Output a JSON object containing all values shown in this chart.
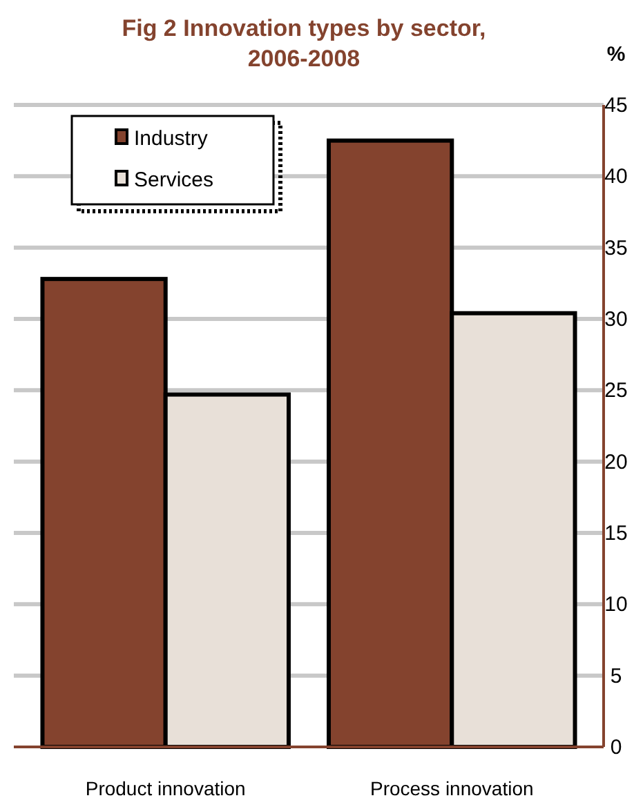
{
  "chart_data": {
    "type": "bar",
    "title": "Fig 2 Innovation types by sector, 2006-2008",
    "ylabel": "%",
    "categories": [
      "Product innovation",
      "Process innovation"
    ],
    "series": [
      {
        "name": "Industry",
        "color": "#84432e",
        "values": [
          32.8,
          42.5
        ]
      },
      {
        "name": "Services",
        "color": "#e8e0d8",
        "values": [
          24.7,
          30.4
        ]
      }
    ],
    "ylim": [
      0,
      45
    ],
    "yticks": [
      0,
      5,
      10,
      15,
      20,
      25,
      30,
      35,
      40,
      45
    ],
    "grid": "y",
    "legend": "top left"
  }
}
